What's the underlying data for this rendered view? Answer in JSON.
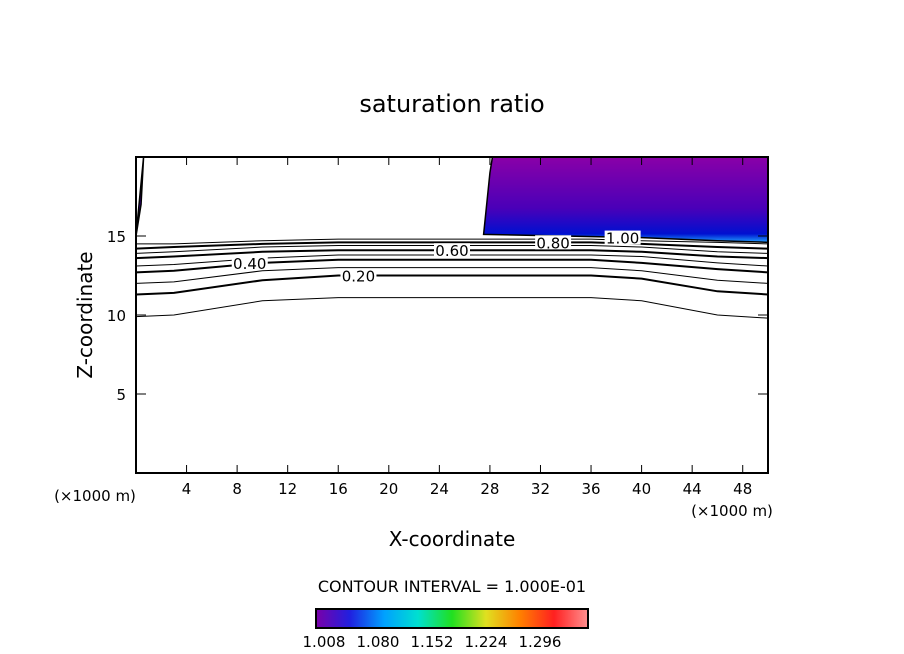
{
  "chart_data": {
    "type": "contour",
    "title": "saturation ratio",
    "xlabel": "X-coordinate",
    "ylabel": "Z-coordinate",
    "xunit": "(×1000 m)",
    "yunit": "(×1000 m)",
    "xlim": [
      0,
      50
    ],
    "ylim": [
      0,
      20
    ],
    "xticks": [
      4,
      8,
      12,
      16,
      20,
      24,
      28,
      32,
      36,
      40,
      44,
      48
    ],
    "yticks": [
      5,
      10,
      15
    ],
    "contour_interval_label": "CONTOUR INTERVAL = 1.000E-01",
    "contour_labels": [
      "0.20",
      "0.40",
      "0.60",
      "0.80",
      "1.00"
    ],
    "contours": [
      {
        "level": 0.1,
        "x": [
          0,
          3,
          10,
          16,
          36,
          40,
          46,
          50
        ],
        "z": [
          9.9,
          10.0,
          10.9,
          11.1,
          11.1,
          10.9,
          10.0,
          9.8
        ]
      },
      {
        "level": 0.2,
        "x": [
          0,
          3,
          10,
          16,
          36,
          40,
          46,
          50
        ],
        "z": [
          11.3,
          11.4,
          12.2,
          12.5,
          12.5,
          12.3,
          11.5,
          11.3
        ]
      },
      {
        "level": 0.3,
        "x": [
          0,
          3,
          10,
          16,
          36,
          40,
          46,
          50
        ],
        "z": [
          12.0,
          12.1,
          12.8,
          13.0,
          13.0,
          12.8,
          12.2,
          12.0
        ]
      },
      {
        "level": 0.4,
        "x": [
          0,
          3,
          10,
          16,
          36,
          40,
          46,
          50
        ],
        "z": [
          12.7,
          12.8,
          13.3,
          13.5,
          13.5,
          13.3,
          12.9,
          12.7
        ]
      },
      {
        "level": 0.5,
        "x": [
          0,
          3,
          10,
          16,
          36,
          40,
          46,
          50
        ],
        "z": [
          13.1,
          13.2,
          13.6,
          13.8,
          13.8,
          13.7,
          13.3,
          13.1
        ]
      },
      {
        "level": 0.6,
        "x": [
          0,
          3,
          10,
          16,
          36,
          40,
          46,
          50
        ],
        "z": [
          13.6,
          13.7,
          14.0,
          14.1,
          14.1,
          14.0,
          13.7,
          13.6
        ]
      },
      {
        "level": 0.7,
        "x": [
          0,
          3,
          10,
          16,
          36,
          40,
          46,
          50
        ],
        "z": [
          13.9,
          14.0,
          14.3,
          14.4,
          14.4,
          14.3,
          14.0,
          13.9
        ]
      },
      {
        "level": 0.8,
        "x": [
          0,
          3,
          10,
          16,
          36,
          40,
          46,
          50
        ],
        "z": [
          14.2,
          14.3,
          14.5,
          14.6,
          14.6,
          14.5,
          14.3,
          14.2
        ]
      },
      {
        "level": 0.9,
        "x": [
          0,
          3,
          10,
          16,
          36,
          40,
          46,
          50
        ],
        "z": [
          14.5,
          14.5,
          14.7,
          14.8,
          14.8,
          14.7,
          14.6,
          14.5
        ]
      }
    ],
    "supersaturated_regions": [
      {
        "x": [
          27.5,
          28.0,
          28.2,
          50,
          50,
          46,
          40,
          27.5
        ],
        "z": [
          15.1,
          19.0,
          20,
          20,
          14.6,
          14.7,
          14.9,
          15.1
        ]
      },
      {
        "x": [
          0,
          0.6,
          0.4,
          0
        ],
        "z": [
          15.0,
          20,
          17,
          15.0
        ]
      }
    ],
    "colorbar": {
      "ticks": [
        "1.008",
        "1.080",
        "1.152",
        "1.224",
        "1.296"
      ],
      "colors": [
        "#7a00a8",
        "#2020e0",
        "#00a0ff",
        "#00e0d0",
        "#20e020",
        "#e0e020",
        "#ff8000",
        "#ff2020",
        "#ff9090"
      ]
    }
  }
}
